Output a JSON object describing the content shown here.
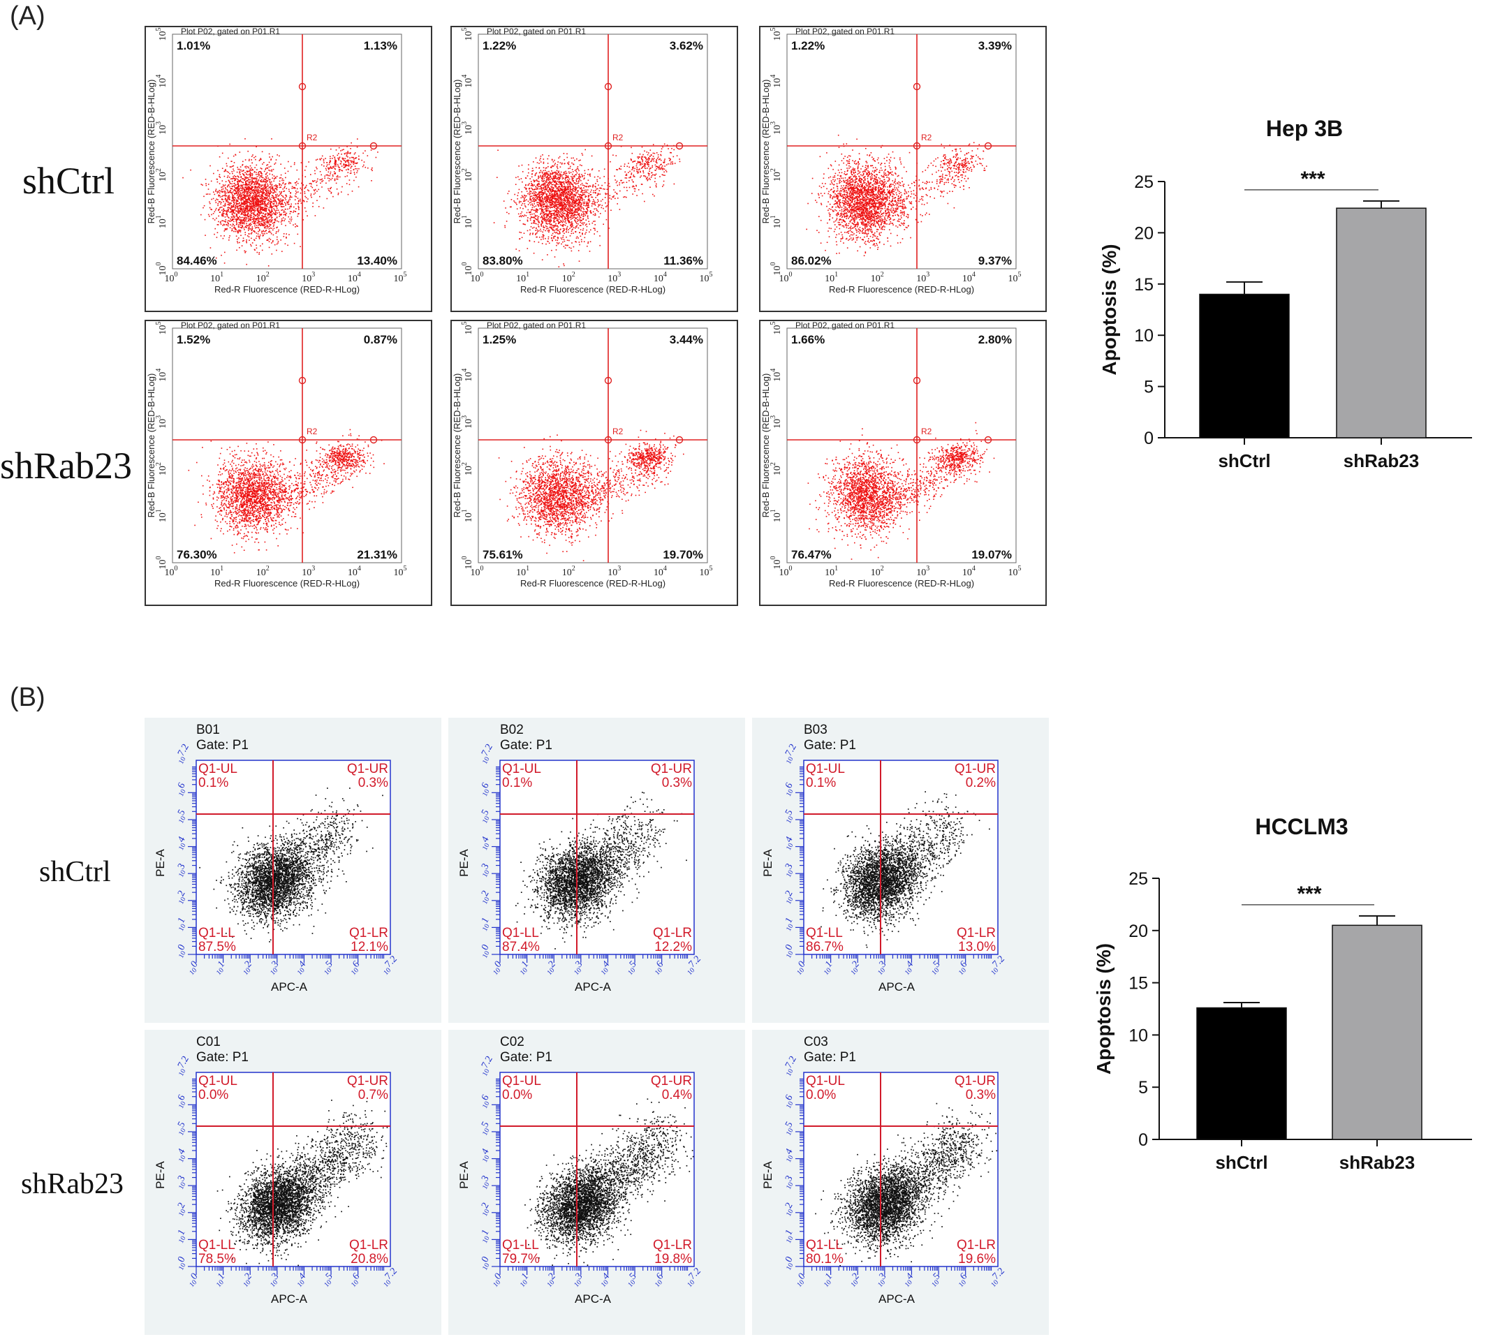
{
  "panel_a": {
    "label": "(A)",
    "row_labels": [
      "shCtrl",
      "shRab23"
    ],
    "plot_header": "Plot P02, gated on P01.R1",
    "region_label": "R2",
    "x_axis_label": "Red-R Fluorescence (RED-R-HLog)",
    "y_axis_label": "Red-B Fluorescence (RED-B-HLog)",
    "tick_labels": [
      "10",
      "10",
      "10",
      "10",
      "10",
      "10"
    ],
    "tick_exponents": [
      "0",
      "1",
      "2",
      "3",
      "4",
      "5"
    ],
    "quadrant_line_color": "#e02020",
    "dot_color": "#ee1111",
    "plots": [
      {
        "ul": "1.01%",
        "ur": "1.13%",
        "ll": "84.46%",
        "lr": "13.40%"
      },
      {
        "ul": "1.22%",
        "ur": "3.62%",
        "ll": "83.80%",
        "lr": "11.36%"
      },
      {
        "ul": "1.22%",
        "ur": "3.39%",
        "ll": "86.02%",
        "lr": "9.37%"
      },
      {
        "ul": "1.52%",
        "ur": "0.87%",
        "ll": "76.30%",
        "lr": "21.31%"
      },
      {
        "ul": "1.25%",
        "ur": "3.44%",
        "ll": "75.61%",
        "lr": "19.70%"
      },
      {
        "ul": "1.66%",
        "ur": "2.80%",
        "ll": "76.47%",
        "lr": "19.07%"
      }
    ]
  },
  "panel_b": {
    "label": "(B)",
    "row_labels": [
      "shCtrl",
      "shRab23"
    ],
    "gate_label": "Gate: P1",
    "x_axis_label": "APC-A",
    "y_axis_label": "PE-A",
    "tick_labels": [
      "0",
      "1",
      "2",
      "3",
      "4",
      "5",
      "6",
      "7.2"
    ],
    "tick_prefix": "10",
    "background_color": "#eef3f4",
    "axis_color": "#2233cc",
    "quadrant_line_color": "#d11a2a",
    "dot_color": "#111111",
    "plots": [
      {
        "id": "B01",
        "ul": "0.1%",
        "ur": "0.3%",
        "ll": "87.5%",
        "lr": "12.1%"
      },
      {
        "id": "B02",
        "ul": "0.1%",
        "ur": "0.3%",
        "ll": "87.4%",
        "lr": "12.2%"
      },
      {
        "id": "B03",
        "ul": "0.1%",
        "ur": "0.2%",
        "ll": "86.7%",
        "lr": "13.0%"
      },
      {
        "id": "C01",
        "ul": "0.0%",
        "ur": "0.7%",
        "ll": "78.5%",
        "lr": "20.8%"
      },
      {
        "id": "C02",
        "ul": "0.0%",
        "ur": "0.4%",
        "ll": "79.7%",
        "lr": "19.8%"
      },
      {
        "id": "C03",
        "ul": "0.0%",
        "ur": "0.3%",
        "ll": "80.1%",
        "lr": "19.6%"
      }
    ],
    "quadrant_names": {
      "ul": "Q1-UL",
      "ur": "Q1-UR",
      "ll": "Q1-LL",
      "lr": "Q1-LR"
    }
  },
  "chart_data": [
    {
      "type": "bar",
      "title": "Hep 3B",
      "xlabel": "",
      "ylabel": "Apoptosis (%)",
      "categories": [
        "shCtrl",
        "shRab23"
      ],
      "values": [
        14.0,
        22.4
      ],
      "errors": [
        1.2,
        0.7
      ],
      "bar_colors": [
        "#000000",
        "#a6a6a8"
      ],
      "ylim": [
        0,
        25
      ],
      "yticks": [
        0,
        5,
        10,
        15,
        20,
        25
      ],
      "significance": "***",
      "grid": false
    },
    {
      "type": "bar",
      "title": "HCCLM3",
      "xlabel": "",
      "ylabel": "Apoptosis (%)",
      "categories": [
        "shCtrl",
        "shRab23"
      ],
      "values": [
        12.6,
        20.5
      ],
      "errors": [
        0.5,
        0.9
      ],
      "bar_colors": [
        "#000000",
        "#a6a6a8"
      ],
      "ylim": [
        0,
        25
      ],
      "yticks": [
        0,
        5,
        10,
        15,
        20,
        25
      ],
      "significance": "***",
      "grid": false
    }
  ]
}
